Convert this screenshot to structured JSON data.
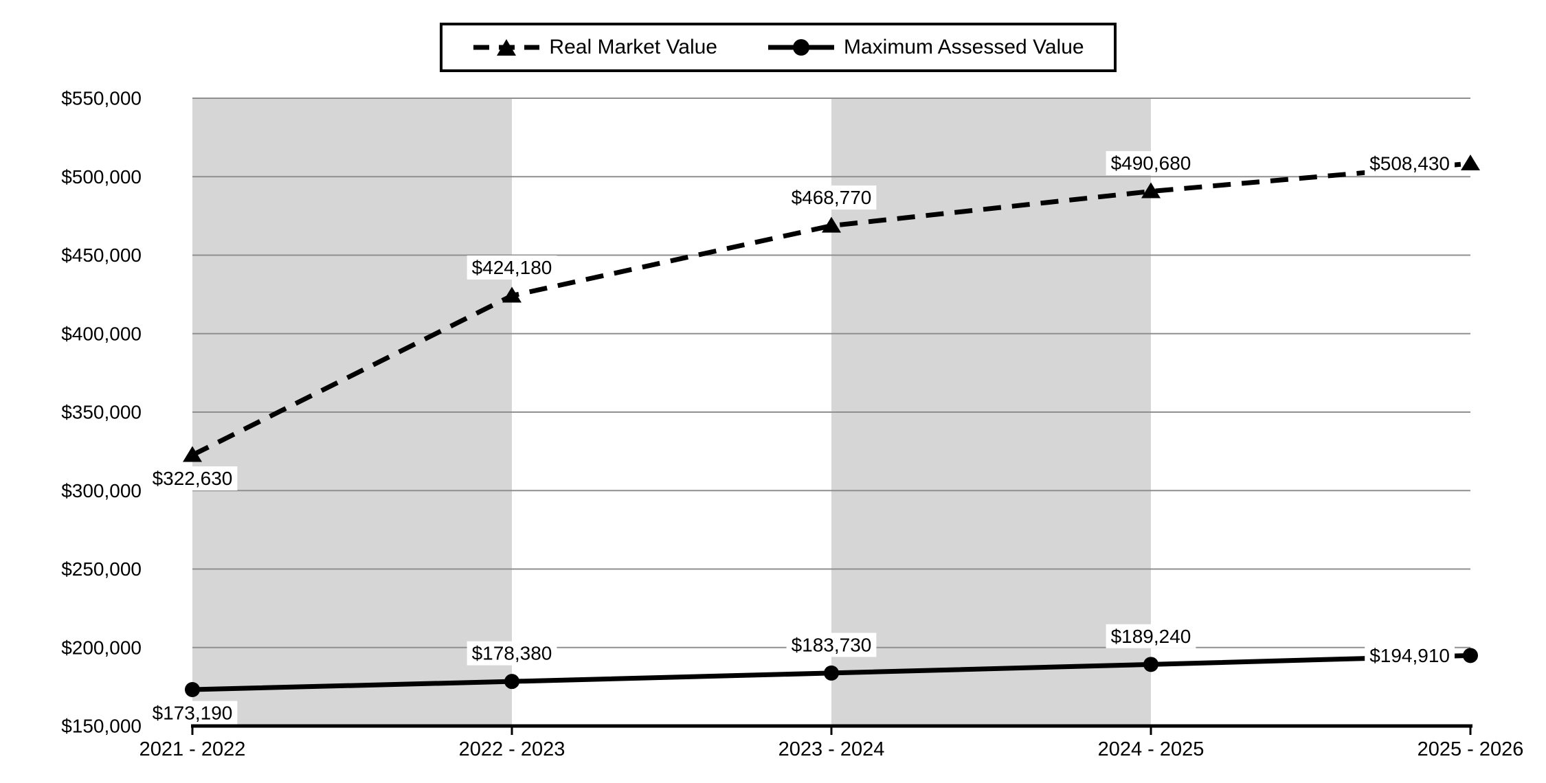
{
  "chart_data": {
    "type": "line",
    "title": "",
    "categories": [
      "2021 - 2022",
      "2022 - 2023",
      "2023 - 2024",
      "2024 - 2025",
      "2025 - 2026"
    ],
    "series": [
      {
        "name": "Real Market Value",
        "line_style": "dashed",
        "marker": "triangle",
        "values": [
          322630,
          424180,
          468770,
          490680,
          508430
        ],
        "data_labels": [
          "$322,630",
          "$424,180",
          "$468,770",
          "$490,680",
          "$508,430"
        ],
        "label_placements": [
          "below",
          "above",
          "above",
          "above",
          "left"
        ]
      },
      {
        "name": "Maximum Assessed Value",
        "line_style": "solid",
        "marker": "circle",
        "values": [
          173190,
          178380,
          183730,
          189240,
          194910
        ],
        "data_labels": [
          "$173,190",
          "$178,380",
          "$183,730",
          "$189,240",
          "$194,910"
        ],
        "label_placements": [
          "below",
          "above",
          "above",
          "above",
          "left"
        ]
      }
    ],
    "y_axis": {
      "min": 150000,
      "max": 550000,
      "step": 50000,
      "tick_labels": [
        "$150,000",
        "$200,000",
        "$250,000",
        "$300,000",
        "$350,000",
        "$400,000",
        "$450,000",
        "$500,000",
        "$550,000"
      ]
    },
    "x_axis": {
      "tick_labels": [
        "2021 - 2022",
        "2022 - 2023",
        "2023 - 2024",
        "2024 - 2025",
        "2025 - 2026"
      ]
    },
    "bands": {
      "shaded_segment_pairs": [
        [
          0,
          1
        ],
        [
          2,
          3
        ]
      ]
    },
    "legend": {
      "position": "top",
      "entries": [
        {
          "label": "Real Market Value",
          "line": "dashed",
          "marker": "triangle"
        },
        {
          "label": "Maximum Assessed Value",
          "line": "solid",
          "marker": "circle"
        }
      ]
    },
    "colors": {
      "series": "#000000",
      "band": "#d6d6d6",
      "gridline": "#8f8f8f",
      "axis": "#000000",
      "background": "#ffffff",
      "label_background": "#ffffff"
    },
    "grid": "horizontal-only"
  }
}
